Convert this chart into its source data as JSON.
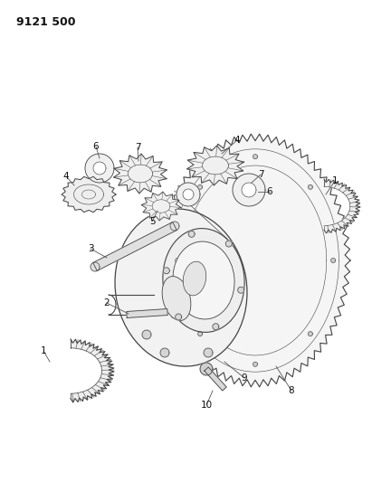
{
  "title": "9121 500",
  "bg_color": "#ffffff",
  "line_color": "#444444",
  "label_color": "#111111",
  "label_fontsize": 7.5,
  "fig_width": 4.11,
  "fig_height": 5.33,
  "dpi": 100,
  "title_fontsize": 9,
  "title_fontweight": "bold"
}
